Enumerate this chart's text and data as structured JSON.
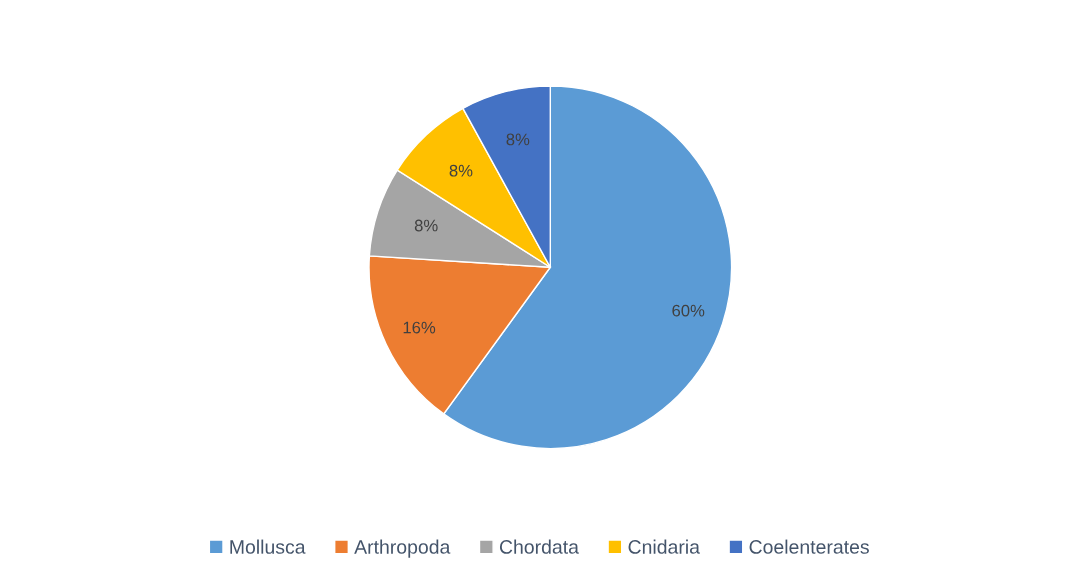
{
  "chart_data": {
    "type": "pie",
    "categories": [
      "Mollusca",
      "Arthropoda",
      "Chordata",
      "Cnidaria",
      "Coelenterates"
    ],
    "values": [
      60,
      16,
      8,
      8,
      8
    ],
    "colors": [
      "#5b9bd5",
      "#ed7d31",
      "#a5a5a5",
      "#ffc000",
      "#4472c4"
    ],
    "value_labels": [
      "60%",
      "16%",
      "8%",
      "8%",
      "8%"
    ],
    "legend": "bottom"
  }
}
